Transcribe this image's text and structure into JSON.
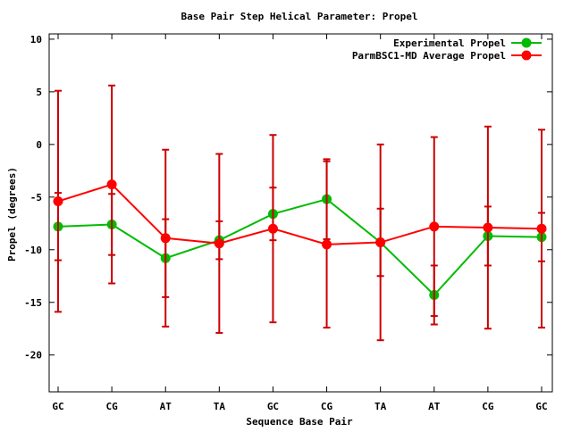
{
  "chart_data": {
    "type": "line",
    "title": "Base Pair Step Helical Parameter: Propel",
    "xlabel": "Sequence Base Pair",
    "ylabel": "Propel (degrees)",
    "categories": [
      "GC",
      "CG",
      "AT",
      "TA",
      "GC",
      "CG",
      "TA",
      "AT",
      "CG",
      "GC"
    ],
    "ylim": [
      -23.5,
      10.5
    ],
    "yticks": [
      {
        "value": 10,
        "label": "10"
      },
      {
        "value": 5,
        "label": "5"
      },
      {
        "value": 0,
        "label": "0"
      },
      {
        "value": -5,
        "label": "-5"
      },
      {
        "value": -10,
        "label": "-10"
      },
      {
        "value": -15,
        "label": "-15"
      },
      {
        "value": -20,
        "label": "-20"
      }
    ],
    "grid": false,
    "legend_position": "top-right",
    "series": [
      {
        "name": "Experimental Propel",
        "color": "#00bb00",
        "errorbar_color": "#cc0000",
        "values": [
          -7.8,
          -7.6,
          -10.8,
          -9.1,
          -6.6,
          -5.2,
          -9.3,
          -14.3,
          -8.7,
          -8.8
        ],
        "errors": [
          3.2,
          2.9,
          3.7,
          1.8,
          2.5,
          3.8,
          3.2,
          2.8,
          2.8,
          2.3
        ]
      },
      {
        "name": "ParmBSC1-MD Average Propel",
        "color": "#ff0000",
        "errorbar_color": "#cc0000",
        "values": [
          -5.4,
          -3.8,
          -8.9,
          -9.4,
          -8.0,
          -9.5,
          -9.3,
          -7.8,
          -7.9,
          -8.0
        ],
        "errors": [
          10.5,
          9.4,
          8.4,
          8.5,
          8.9,
          7.9,
          9.3,
          8.5,
          9.6,
          9.4
        ]
      }
    ]
  }
}
